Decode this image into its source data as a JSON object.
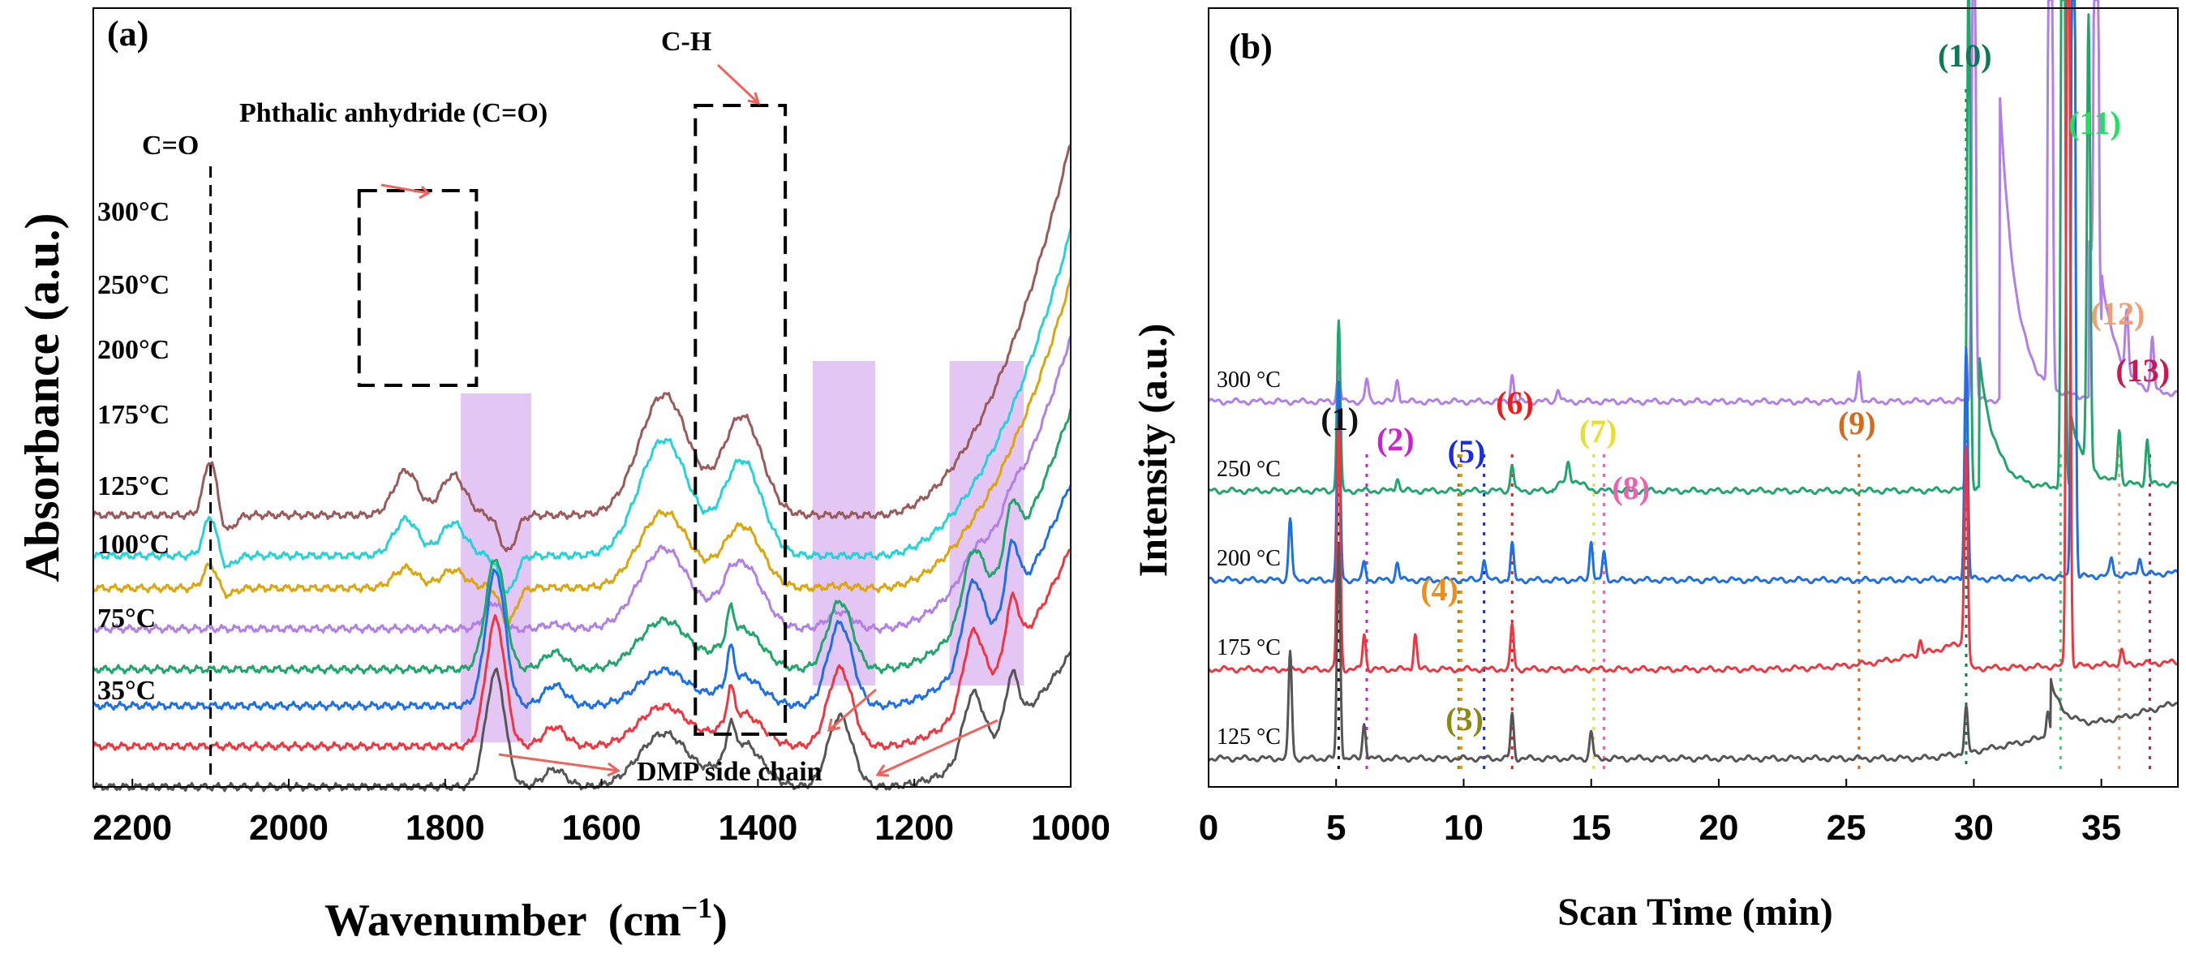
{
  "colors": {
    "brown": "#9b5a5a",
    "cyan": "#23d3d8",
    "gold": "#dca50a",
    "violet": "#b27ee8",
    "green": "#1fa66a",
    "blue": "#1c6fe6",
    "red": "#f0353f",
    "gray": "#555555",
    "arrow": "#f0625a",
    "shade": "#d9b3f0"
  },
  "chart_data": [
    {
      "type": "line",
      "panel_label": "(a)",
      "xlabel": "Wavenumber",
      "xlabel_unit": "(cm",
      "xlabel_sup": "−1",
      "xlabel_close": ")",
      "ylabel": "Absorbance (a.u.)",
      "xlim": [
        2250,
        1000
      ],
      "x_reversed": true,
      "xticks": [
        2200,
        2000,
        1800,
        1600,
        1400,
        1200,
        1000
      ],
      "annotations": [
        "C=O",
        "Phthalic anhydride (C=O)",
        "C-H",
        "DMP side chain"
      ],
      "shaded_bands": [
        [
          1780,
          1690
        ],
        [
          1330,
          1250
        ],
        [
          1155,
          1060
        ]
      ],
      "dashed_boxes": [
        [
          1910,
          1760
        ],
        [
          1480,
          1365
        ]
      ],
      "dashed_line_x": 2100,
      "series": [
        {
          "name": "300°C",
          "color": "brown",
          "offset": 0.72,
          "baseline": 3.0,
          "cm": 0.7,
          "anhydride": 0.55,
          "dmp": 0.0,
          "ch": 1.35,
          "t1": [
            2.3,
            3.2
          ],
          "end": 7.6
        },
        {
          "name": "250°C",
          "color": "cyan",
          "offset": 0.2,
          "baseline": 2.5,
          "cm": 0.5,
          "anhydride": 0.45,
          "dmp": 0.0,
          "ch": 1.3,
          "t1": [
            2.3,
            3.1
          ],
          "end": 6.5
        },
        {
          "name": "200°C",
          "color": "gold",
          "offset": 0.0,
          "baseline": 2.1,
          "cm": 0.3,
          "anhydride": 0.25,
          "dmp": 0.05,
          "ch": 0.85,
          "t1": [
            1.8,
            2.7
          ],
          "end": 5.9
        },
        {
          "name": "175°C",
          "color": "violet",
          "offset": 0.0,
          "baseline": 1.6,
          "cm": 0.0,
          "anhydride": 0.0,
          "dmp": 0.35,
          "ch": 0.9,
          "t1": [
            1.6,
            2.4
          ],
          "end": 5.2
        },
        {
          "name": "125°C",
          "color": "green",
          "offset": 0.0,
          "baseline": 1.1,
          "cm": 0.0,
          "anhydride": 0.0,
          "dmp": 1.4,
          "ch": 0.55,
          "t1": [
            1.3,
            2.0
          ],
          "end": 4.3
        },
        {
          "name": "100°C",
          "color": "blue",
          "offset": 0.0,
          "baseline": 0.65,
          "cm": 0.0,
          "anhydride": 0.0,
          "dmp": 1.7,
          "ch": 0.4,
          "t1": [
            1.1,
            1.8
          ],
          "end": 3.4
        },
        {
          "name": "75°C",
          "color": "red",
          "offset": 0.0,
          "baseline": 0.15,
          "cm": 0.0,
          "anhydride": 0.0,
          "dmp": 1.6,
          "ch": 0.45,
          "t1": [
            1.0,
            1.6
          ],
          "end": 2.6
        },
        {
          "name": "35°C",
          "color": "gray",
          "offset": 0.0,
          "baseline": -0.35,
          "cm": 0.0,
          "anhydride": 0.0,
          "dmp": 1.45,
          "ch": 0.6,
          "t1": [
            1.0,
            1.5
          ],
          "end": 1.3
        }
      ]
    },
    {
      "type": "line",
      "panel_label": "(b)",
      "xlabel": "Scan Time (min)",
      "ylabel": "Intensity  (a.u.)",
      "xlim": [
        0,
        38
      ],
      "xticks": [
        0,
        5,
        10,
        15,
        20,
        25,
        30,
        35
      ],
      "series": [
        {
          "name": "300 °C",
          "color": "violet",
          "baseline": 4.0,
          "peaks": [
            [
              5.1,
              0.35
            ],
            [
              6.2,
              0.25
            ],
            [
              7.4,
              0.25
            ],
            [
              11.9,
              0.3
            ],
            [
              13.7,
              0.15
            ],
            [
              25.5,
              0.35
            ],
            [
              30.0,
              7.5
            ],
            [
              33.0,
              12.0
            ],
            [
              34.8,
              10.0
            ],
            [
              36.0,
              0.7
            ],
            [
              37.0,
              0.6
            ]
          ],
          "tail": [
            [
              31,
              3.5
            ],
            [
              34.5,
              1.8
            ],
            [
              35.0,
              0.6
            ]
          ]
        },
        {
          "name": "250 °C",
          "color": "green",
          "baseline": 3.0,
          "peaks": [
            [
              5.1,
              1.9
            ],
            [
              7.4,
              0.15
            ],
            [
              11.9,
              0.3
            ],
            [
              14.1,
              0.2
            ],
            [
              29.8,
              6.0
            ],
            [
              33.5,
              12.0
            ],
            [
              34.5,
              5.0
            ],
            [
              35.7,
              0.6
            ],
            [
              36.8,
              0.5
            ]
          ],
          "tail": [
            [
              30.2,
              1.5
            ],
            [
              33.8,
              0.8
            ]
          ]
        },
        {
          "name": "200 °C",
          "color": "blue",
          "baseline": 2.0,
          "peaks": [
            [
              3.2,
              0.7
            ],
            [
              5.1,
              2.2
            ],
            [
              6.1,
              0.2
            ],
            [
              7.4,
              0.2
            ],
            [
              10.8,
              0.25
            ],
            [
              11.9,
              0.4
            ],
            [
              15.0,
              0.45
            ],
            [
              15.5,
              0.3
            ],
            [
              29.7,
              2.6
            ],
            [
              33.9,
              12.0
            ],
            [
              35.4,
              0.2
            ],
            [
              36.5,
              0.2
            ]
          ],
          "tail": []
        },
        {
          "name": "175 °C",
          "color": "red",
          "baseline": 1.0,
          "peaks": [
            [
              5.1,
              2.8
            ],
            [
              6.1,
              0.4
            ],
            [
              8.1,
              0.4
            ],
            [
              11.9,
              0.5
            ],
            [
              27.9,
              0.15
            ],
            [
              29.7,
              2.5
            ],
            [
              33.7,
              12.0
            ],
            [
              35.8,
              0.15
            ]
          ],
          "tail": []
        },
        {
          "name": "125 °C",
          "color": "gray",
          "baseline": 0.0,
          "peaks": [
            [
              3.2,
              1.2
            ],
            [
              5.1,
              2.4
            ],
            [
              6.1,
              0.4
            ],
            [
              11.9,
              0.5
            ],
            [
              15.0,
              0.3
            ],
            [
              29.7,
              0.5
            ],
            [
              32.9,
              0.3
            ]
          ],
          "tail": [
            [
              33.0,
              0.6
            ]
          ]
        }
      ],
      "peak_labels": [
        {
          "text": "(1)",
          "x": 5.1,
          "color": "#111111"
        },
        {
          "text": "(2)",
          "x": 6.2,
          "color": "#cc22cc"
        },
        {
          "text": "(3)",
          "x": 9.8,
          "color": "#8a8a10"
        },
        {
          "text": "(4)",
          "x": 9.9,
          "color": "#f08c1a"
        },
        {
          "text": "(5)",
          "x": 10.8,
          "color": "#1a2be0"
        },
        {
          "text": "(6)",
          "x": 11.9,
          "color": "#f01a1a"
        },
        {
          "text": "(7)",
          "x": 15.1,
          "color": "#e8e030"
        },
        {
          "text": "(8)",
          "x": 15.5,
          "color": "#f060b0"
        },
        {
          "text": "(9)",
          "x": 25.5,
          "color": "#d46a1a"
        },
        {
          "text": "(10)",
          "x": 29.7,
          "color": "#0e7a55"
        },
        {
          "text": "(11)",
          "x": 33.4,
          "color": "#22e060"
        },
        {
          "text": "(12)",
          "x": 35.7,
          "color": "#f0a070"
        },
        {
          "text": "(13)",
          "x": 36.9,
          "color": "#cc1850"
        }
      ]
    }
  ]
}
